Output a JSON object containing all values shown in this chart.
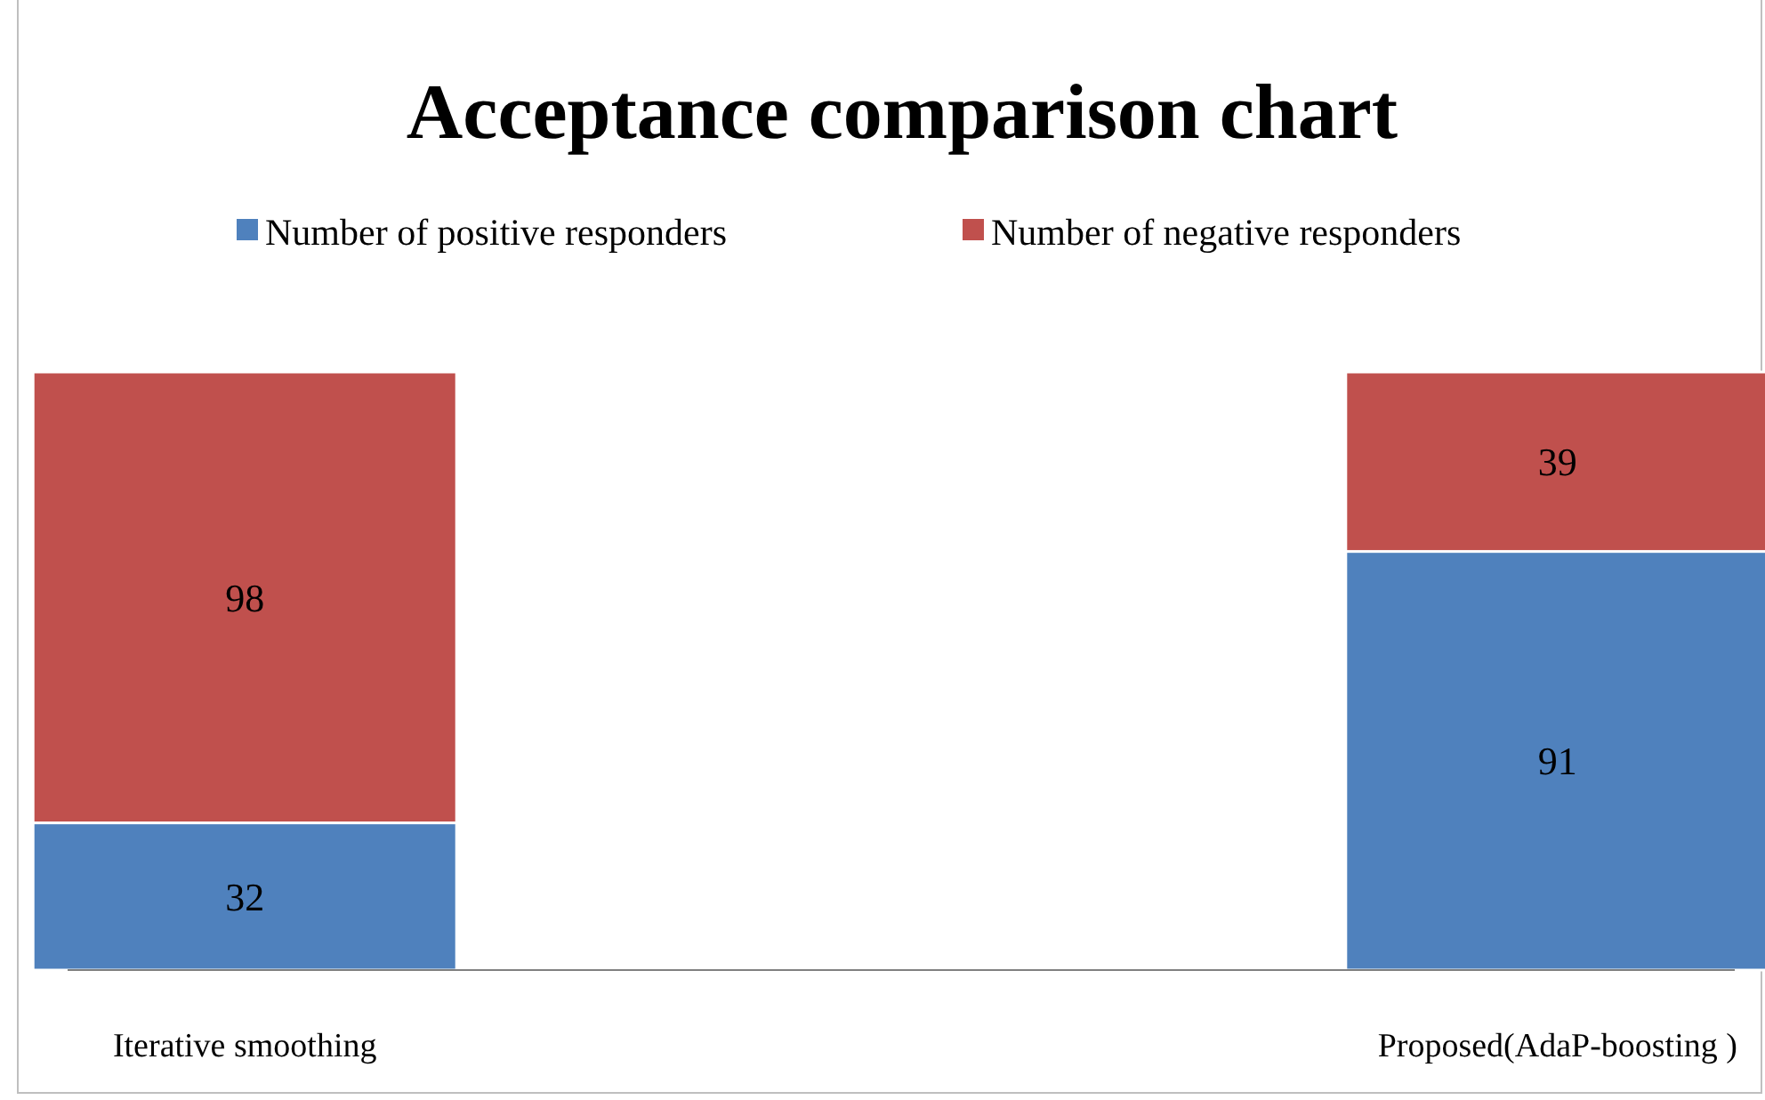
{
  "chart_data": {
    "type": "bar",
    "title": "Acceptance  comparison chart",
    "categories": [
      "Iterative smoothing",
      "Proposed(AdaP-boosting )"
    ],
    "stacked": true,
    "data_labels": true,
    "legend": "top",
    "series": [
      {
        "name": "Number of positive responders",
        "color": "#4f81bd",
        "values": [
          32,
          91
        ]
      },
      {
        "name": "Number of negative responders",
        "color": "#c0504d",
        "values": [
          98,
          39
        ]
      }
    ]
  }
}
